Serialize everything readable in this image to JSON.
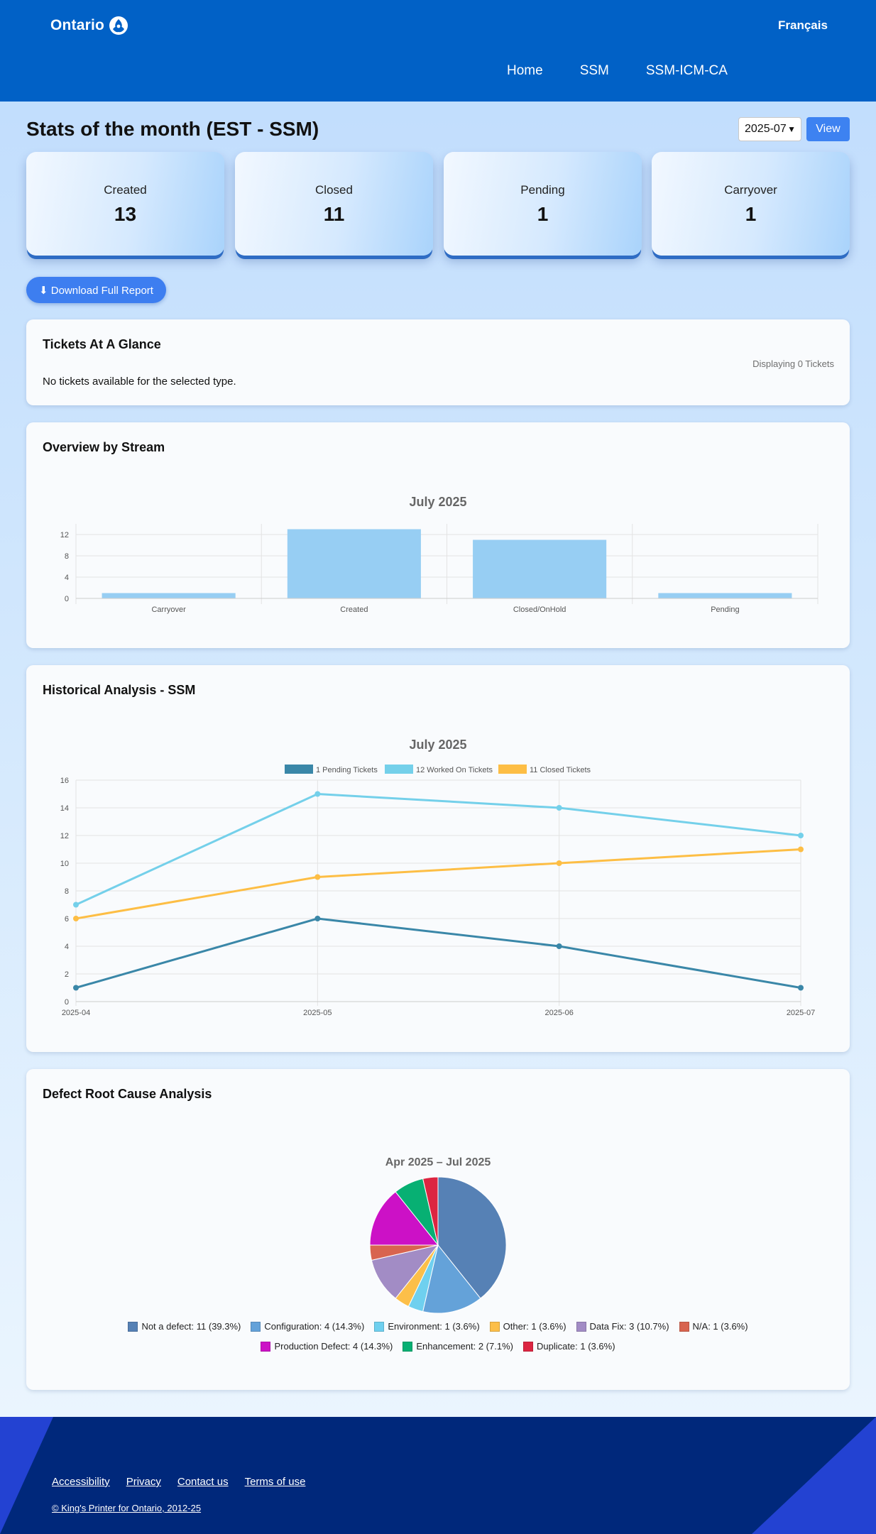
{
  "header": {
    "brand": "Ontario",
    "lang_toggle": "Français",
    "nav": [
      "Home",
      "SSM",
      "SSM-ICM-CA"
    ]
  },
  "stats": {
    "title": "Stats of the month (EST - SSM)",
    "month_select_value": "2025-07",
    "view_label": "View",
    "cards": [
      {
        "label": "Created",
        "value": "13"
      },
      {
        "label": "Closed",
        "value": "11"
      },
      {
        "label": "Pending",
        "value": "1"
      },
      {
        "label": "Carryover",
        "value": "1"
      }
    ],
    "download_label": "⬇ Download Full Report"
  },
  "tickets": {
    "title": "Tickets At A Glance",
    "count_text": "Displaying 0 Tickets",
    "empty_text": "No tickets available for the selected type."
  },
  "stream": {
    "title": "Overview by Stream"
  },
  "historical": {
    "title": "Historical Analysis - SSM"
  },
  "defect": {
    "title": "Defect Root Cause Analysis"
  },
  "footer": {
    "links": [
      "Accessibility",
      "Privacy",
      "Contact us",
      "Terms of use"
    ],
    "copyright": "© King's Printer for Ontario, 2012-25"
  },
  "colors": {
    "header_bg": "#0161c6",
    "bar": "#97cef3",
    "pending": "#3a87a8",
    "worked": "#74d0ea",
    "closed": "#fdbe45",
    "footer_bg": "#00287b"
  },
  "chart_data": [
    {
      "type": "bar",
      "title": "July 2025",
      "categories": [
        "Carryover",
        "Created",
        "Closed/OnHold",
        "Pending"
      ],
      "values": [
        1,
        13,
        11,
        1
      ],
      "ylim": [
        0,
        14
      ],
      "yticks": [
        0,
        4,
        8,
        12
      ],
      "grid": true,
      "xlabel": "",
      "ylabel": ""
    },
    {
      "type": "line",
      "title": "July 2025",
      "x": [
        "2025-04",
        "2025-05",
        "2025-06",
        "2025-07"
      ],
      "ylim": [
        0,
        16
      ],
      "yticks": [
        0,
        2,
        4,
        6,
        8,
        10,
        12,
        14,
        16
      ],
      "grid": true,
      "legend_position": "top",
      "series": [
        {
          "name": "1 Pending Tickets",
          "values": [
            1,
            6,
            4,
            1
          ],
          "color": "#3a87a8"
        },
        {
          "name": "12 Worked On Tickets",
          "values": [
            7,
            15,
            14,
            12
          ],
          "color": "#74d0ea"
        },
        {
          "name": "11 Closed Tickets",
          "values": [
            6,
            9,
            10,
            11
          ],
          "color": "#fdbe45"
        }
      ]
    },
    {
      "type": "pie",
      "title": "Apr 2025 – Jul 2025",
      "legend_position": "bottom",
      "slices": [
        {
          "label": "Not a defect: 11 (39.3%)",
          "value": 11,
          "color": "#5681b5"
        },
        {
          "label": "Configuration: 4 (14.3%)",
          "value": 4,
          "color": "#64a2d9"
        },
        {
          "label": "Environment: 1 (3.6%)",
          "value": 1,
          "color": "#6fd0ef"
        },
        {
          "label": "Other: 1 (3.6%)",
          "value": 1,
          "color": "#fcbf49"
        },
        {
          "label": "Data Fix: 3 (10.7%)",
          "value": 3,
          "color": "#a28cc5"
        },
        {
          "label": "N/A: 1 (3.6%)",
          "value": 1,
          "color": "#d8644f"
        },
        {
          "label": "Production Defect: 4 (14.3%)",
          "value": 4,
          "color": "#cc11c6"
        },
        {
          "label": "Enhancement: 2 (7.1%)",
          "value": 2,
          "color": "#07b073"
        },
        {
          "label": "Duplicate: 1 (3.6%)",
          "value": 1,
          "color": "#dc2541"
        }
      ]
    }
  ]
}
